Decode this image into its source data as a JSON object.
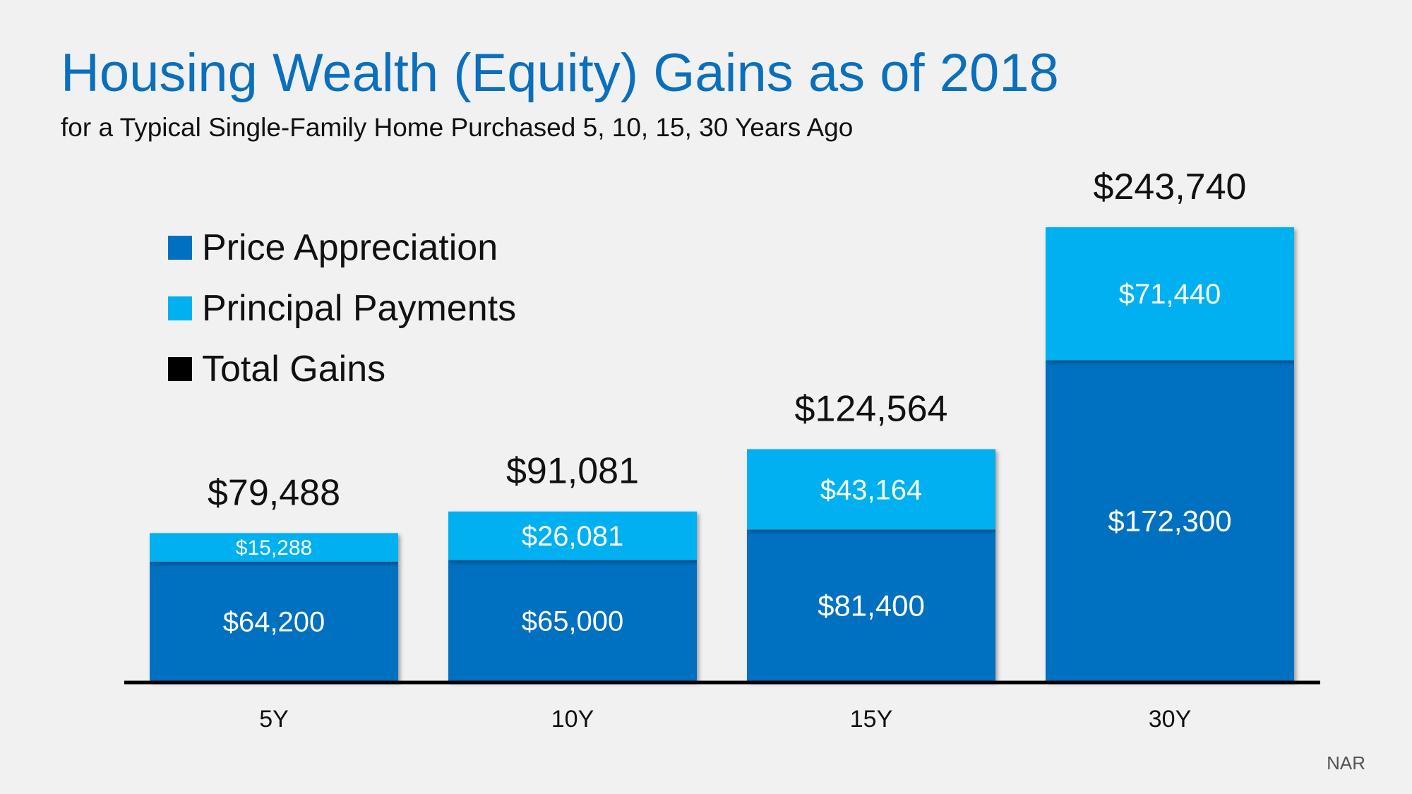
{
  "chart_data": {
    "type": "bar",
    "stacked": true,
    "title": "Housing Wealth (Equity) Gains as of 2018",
    "subtitle": "for a Typical Single-Family Home Purchased 5, 10, 15, 30 Years Ago",
    "categories": [
      "5Y",
      "10Y",
      "15Y",
      "30Y"
    ],
    "series": [
      {
        "name": "Price Appreciation",
        "color": "#0070c0",
        "values": [
          64200,
          65000,
          81400,
          172300
        ],
        "labels": [
          "$64,200",
          "$65,000",
          "$81,400",
          "$172,300"
        ]
      },
      {
        "name": "Principal Payments",
        "color": "#00b0f0",
        "values": [
          15288,
          26081,
          43164,
          71440
        ],
        "labels": [
          "$15,288",
          "$26,081",
          "$43,164",
          "$71,440"
        ]
      }
    ],
    "totals": {
      "name": "Total Gains",
      "color": "#000000",
      "values": [
        79488,
        91081,
        124564,
        243740
      ],
      "labels": [
        "$79,488",
        "$91,081",
        "$124,564",
        "$243,740"
      ]
    },
    "ylim": [
      0,
      243740
    ],
    "xlabel": "",
    "ylabel": "",
    "grid": false,
    "legend_position": "top-left"
  },
  "source": "NAR"
}
